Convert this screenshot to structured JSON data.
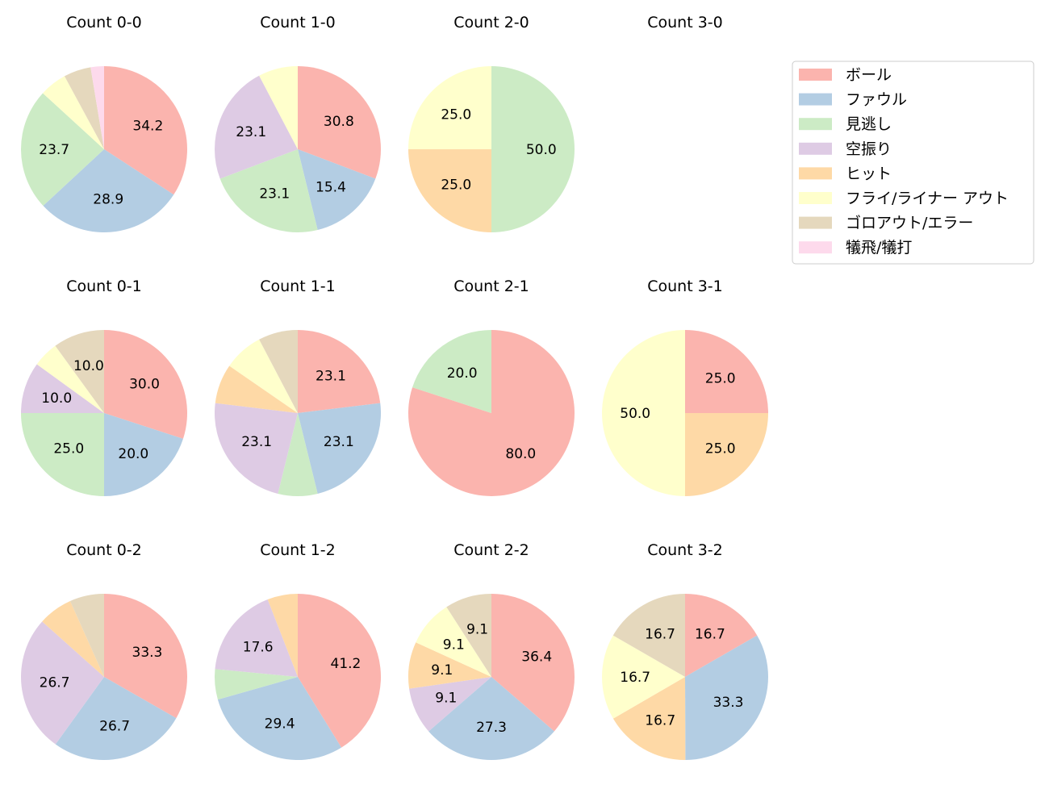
{
  "chart_data": {
    "type": "pie",
    "categories": [
      "ボール",
      "ファウル",
      "見逃し",
      "空振り",
      "ヒット",
      "フライ/ライナー アウト",
      "ゴロアウト/エラー",
      "犠飛/犠打"
    ],
    "colors": [
      "#fbb4ae",
      "#b3cde3",
      "#ccebc5",
      "#decbe4",
      "#fed9a6",
      "#ffffcc",
      "#e5d8bd",
      "#fddaec"
    ],
    "legend_position": "right",
    "start_angle_deg": 90,
    "direction": "clockwise",
    "pies": [
      {
        "title": "Count 0-0",
        "values": [
          34.2,
          28.9,
          23.7,
          0,
          0,
          5.3,
          5.3,
          2.6
        ]
      },
      {
        "title": "Count 1-0",
        "values": [
          30.8,
          15.4,
          23.1,
          23.1,
          0,
          7.7,
          0,
          0
        ]
      },
      {
        "title": "Count 2-0",
        "values": [
          0,
          0,
          50.0,
          0,
          25.0,
          25.0,
          0,
          0
        ]
      },
      {
        "title": "Count 3-0",
        "values": []
      },
      {
        "title": "Count 0-1",
        "values": [
          30.0,
          20.0,
          25.0,
          10.0,
          0,
          5.0,
          10.0,
          0
        ]
      },
      {
        "title": "Count 1-1",
        "values": [
          23.1,
          23.1,
          7.7,
          23.1,
          7.7,
          7.7,
          7.7,
          0
        ]
      },
      {
        "title": "Count 2-1",
        "values": [
          80.0,
          0,
          20.0,
          0,
          0,
          0,
          0,
          0
        ]
      },
      {
        "title": "Count 3-1",
        "values": [
          25.0,
          0,
          0,
          0,
          25.0,
          50.0,
          0,
          0
        ]
      },
      {
        "title": "Count 0-2",
        "values": [
          33.3,
          26.7,
          0,
          26.7,
          6.7,
          0,
          6.7,
          0
        ]
      },
      {
        "title": "Count 1-2",
        "values": [
          41.2,
          29.4,
          5.9,
          17.6,
          5.9,
          0,
          0,
          0
        ]
      },
      {
        "title": "Count 2-2",
        "values": [
          36.4,
          27.3,
          0,
          9.1,
          9.1,
          9.1,
          9.1,
          0
        ]
      },
      {
        "title": "Count 3-2",
        "values": [
          16.7,
          33.3,
          0,
          0,
          16.7,
          16.7,
          16.7,
          0
        ]
      }
    ]
  }
}
